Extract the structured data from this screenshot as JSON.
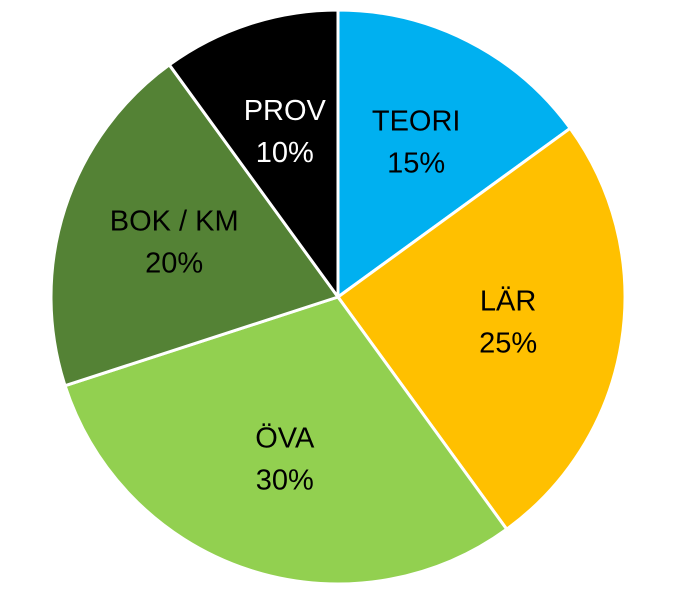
{
  "chart_data": {
    "type": "pie",
    "title": "",
    "slices": [
      {
        "label": "TEORI",
        "value": 15,
        "value_label": "15%",
        "color": "#00B0F0",
        "text_color": "#000000"
      },
      {
        "label": "LÄR",
        "value": 25,
        "value_label": "25%",
        "color": "#FFC000",
        "text_color": "#000000"
      },
      {
        "label": "ÖVA",
        "value": 30,
        "value_label": "30%",
        "color": "#92D050",
        "text_color": "#000000"
      },
      {
        "label": "BOK / KM",
        "value": 20,
        "value_label": "20%",
        "color": "#548235",
        "text_color": "#000000"
      },
      {
        "label": "PROV",
        "value": 10,
        "value_label": "10%",
        "color": "#000000",
        "text_color": "#ffffff"
      }
    ],
    "start_angle": "12 o'clock",
    "direction": "clockwise",
    "legend": "none",
    "data_labels": "inside"
  }
}
